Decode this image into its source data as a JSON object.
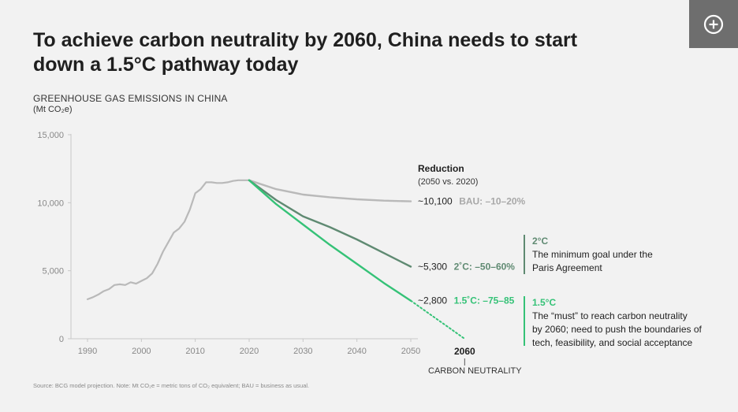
{
  "title": "To achieve carbon neutrality by 2060, China needs to start down a 1.5°C pathway today",
  "expand_icon": "plus-circle-icon",
  "source": "Source: BCG model projection. Note: Mt CO₂e = metric tons of CO₂ equivalent; BAU = business as usual.",
  "colors": {
    "bau": "#b9b9b9",
    "two_deg": "#5f8a72",
    "one_five_deg": "#35c277",
    "axis": "#c8c8c8",
    "text_gray": "#888888"
  },
  "chart_data": {
    "type": "line",
    "title": "GREENHOUSE GAS EMISSIONS IN CHINA",
    "ylabel": "(Mt CO₂e)",
    "xlabel": "",
    "xlim": [
      1987,
      2062
    ],
    "ylim": [
      0,
      15000
    ],
    "yticks": [
      0,
      5000,
      10000,
      15000
    ],
    "ytick_labels": [
      "0",
      "5,000",
      "10,000",
      "15,000"
    ],
    "xticks": [
      1990,
      2000,
      2010,
      2020,
      2030,
      2040,
      2050
    ],
    "xtick_labels": [
      "1990",
      "2000",
      "2010",
      "2020",
      "2030",
      "2040",
      "2050"
    ],
    "neutrality_year": "2060",
    "neutrality_label": "CARBON NEUTRALITY",
    "grid": false,
    "reduction_header": "Reduction",
    "reduction_subheader": "(2050 vs. 2020)",
    "historical": {
      "name": "",
      "x": [
        1990,
        1991,
        1992,
        1993,
        1994,
        1995,
        1996,
        1997,
        1998,
        1999,
        2000,
        2001,
        2002,
        2003,
        2004,
        2005,
        2006,
        2007,
        2008,
        2009,
        2010,
        2011,
        2012,
        2013,
        2014,
        2015,
        2016,
        2017,
        2018,
        2019,
        2020
      ],
      "y": [
        2900,
        3050,
        3250,
        3500,
        3650,
        3950,
        4000,
        3950,
        4150,
        4050,
        4250,
        4450,
        4800,
        5500,
        6400,
        7100,
        7800,
        8100,
        8600,
        9500,
        10700,
        11000,
        11500,
        11500,
        11450,
        11450,
        11500,
        11600,
        11650,
        11650,
        11650
      ]
    },
    "series": [
      {
        "name": "BAU",
        "end_value_label": "~10,100",
        "reduction_label": "BAU: –10–20%",
        "x": [
          2020,
          2025,
          2030,
          2035,
          2040,
          2045,
          2050
        ],
        "y": [
          11650,
          11000,
          10600,
          10400,
          10250,
          10150,
          10100
        ]
      },
      {
        "name": "2°C",
        "end_value_label": "~5,300",
        "reduction_label": "2˚C: –50–60%",
        "x": [
          2020,
          2025,
          2030,
          2035,
          2040,
          2045,
          2050
        ],
        "y": [
          11650,
          10200,
          9000,
          8200,
          7300,
          6300,
          5300
        ]
      },
      {
        "name": "1.5°C",
        "end_value_label": "~2,800",
        "reduction_label": "1.5˚C: –75–85",
        "x": [
          2020,
          2025,
          2030,
          2035,
          2040,
          2045,
          2050
        ],
        "y": [
          11650,
          9900,
          8400,
          6900,
          5500,
          4100,
          2800
        ],
        "projection_x": [
          2050,
          2060
        ],
        "projection_y": [
          2800,
          0
        ]
      }
    ]
  },
  "annotations": [
    {
      "title": "2°C",
      "lines": [
        "The minimum goal under the",
        "Paris Agreement"
      ]
    },
    {
      "title": "1.5°C",
      "lines": [
        "The “must” to reach carbon neutrality",
        "by 2060; need to push the boundaries of",
        "tech, feasibility, and social acceptance"
      ]
    }
  ]
}
